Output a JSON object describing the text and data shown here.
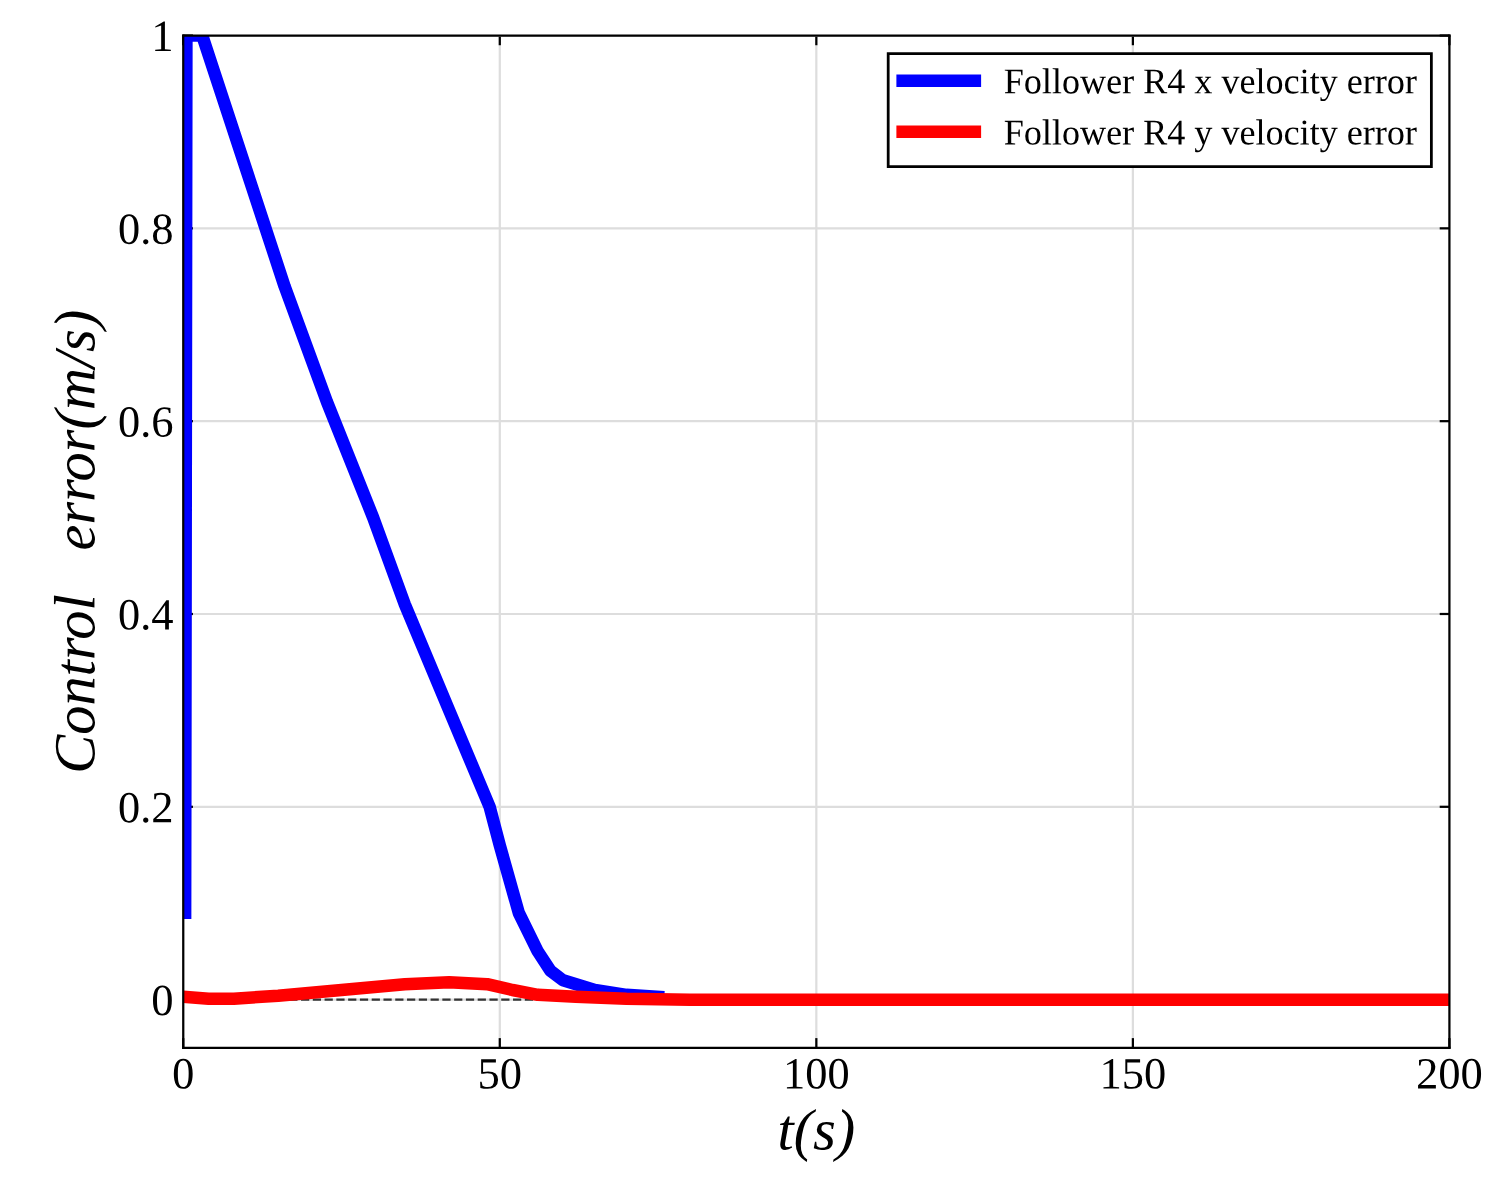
{
  "chart_data": {
    "type": "line",
    "xlabel": "t(s)",
    "ylabel": "Control   error(m/s)",
    "xlim": [
      0,
      200
    ],
    "ylim": [
      -0.05,
      1
    ],
    "xticks": [
      0,
      50,
      100,
      150,
      200
    ],
    "yticks": [
      0,
      0.2,
      0.4,
      0.6,
      0.8,
      1
    ],
    "grid": true,
    "legend": "top right",
    "marker": "none",
    "line_style": "solid",
    "ref_lines": [
      {
        "axis": "y",
        "value": 0,
        "label": null,
        "color": "#333333",
        "line_style": "dashed"
      }
    ],
    "series": [
      {
        "name": "Follower R4 x velocity error",
        "color": "#0000ff",
        "x": [
          0.3,
          0.5,
          3,
          5,
          10,
          16,
          22.7,
          30,
          35,
          42,
          48.4,
          50,
          53,
          56,
          58,
          60,
          65,
          70,
          75
        ],
        "values": [
          0.09,
          1,
          1,
          0.96,
          0.86,
          0.74,
          0.62,
          0.5,
          0.41,
          0.3,
          0.2,
          0.16,
          0.09,
          0.05,
          0.03,
          0.02,
          0.01,
          0.005,
          0.003
        ]
      },
      {
        "name": "Follower R4 y velocity error",
        "color": "#ff0000",
        "x": [
          0,
          4,
          8,
          15,
          25,
          35,
          42,
          48,
          52,
          56,
          62,
          70,
          80,
          100,
          150,
          200
        ],
        "values": [
          0.003,
          0.001,
          0.001,
          0.004,
          0.01,
          0.016,
          0.018,
          0.016,
          0.01,
          0.005,
          0.003,
          0.001,
          0,
          0,
          0,
          0
        ]
      }
    ]
  }
}
